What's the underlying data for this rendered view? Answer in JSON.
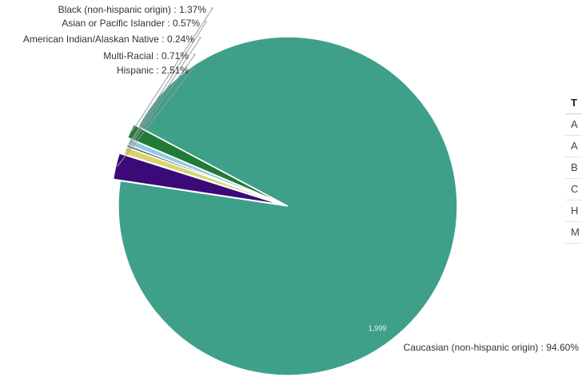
{
  "chart_data": {
    "type": "pie",
    "title": "",
    "slices": [
      {
        "label": "Caucasian (non-hispanic origin)",
        "value": 94.6,
        "display": "Caucasian (non-hispanic origin) : 94.60%",
        "color": "#3fa08a"
      },
      {
        "label": "Hispanic",
        "value": 2.51,
        "display": "Hispanic : 2.51%",
        "color": "#3b0a78"
      },
      {
        "label": "Multi-Racial",
        "value": 0.71,
        "display": "Multi-Racial : 0.71%",
        "color": "#d9d46a"
      },
      {
        "label": "American Indian/Alaskan Native",
        "value": 0.24,
        "display": "American Indian/Alaskan Native : 0.24%",
        "color": "#5a5a5a"
      },
      {
        "label": "Asian or Pacific Islander",
        "value": 0.57,
        "display": "Asian or Pacific Islander : 0.57%",
        "color": "#8fcbe3"
      },
      {
        "label": "Black (non-hispanic origin)",
        "value": 1.37,
        "display": "Black (non-hispanic origin) : 1.37%",
        "color": "#217a36"
      }
    ],
    "inner_label": "1,999",
    "legend": "none"
  },
  "side_table": {
    "header": "T",
    "rows": [
      "A",
      "A",
      "B",
      "C",
      "H",
      "M"
    ]
  }
}
